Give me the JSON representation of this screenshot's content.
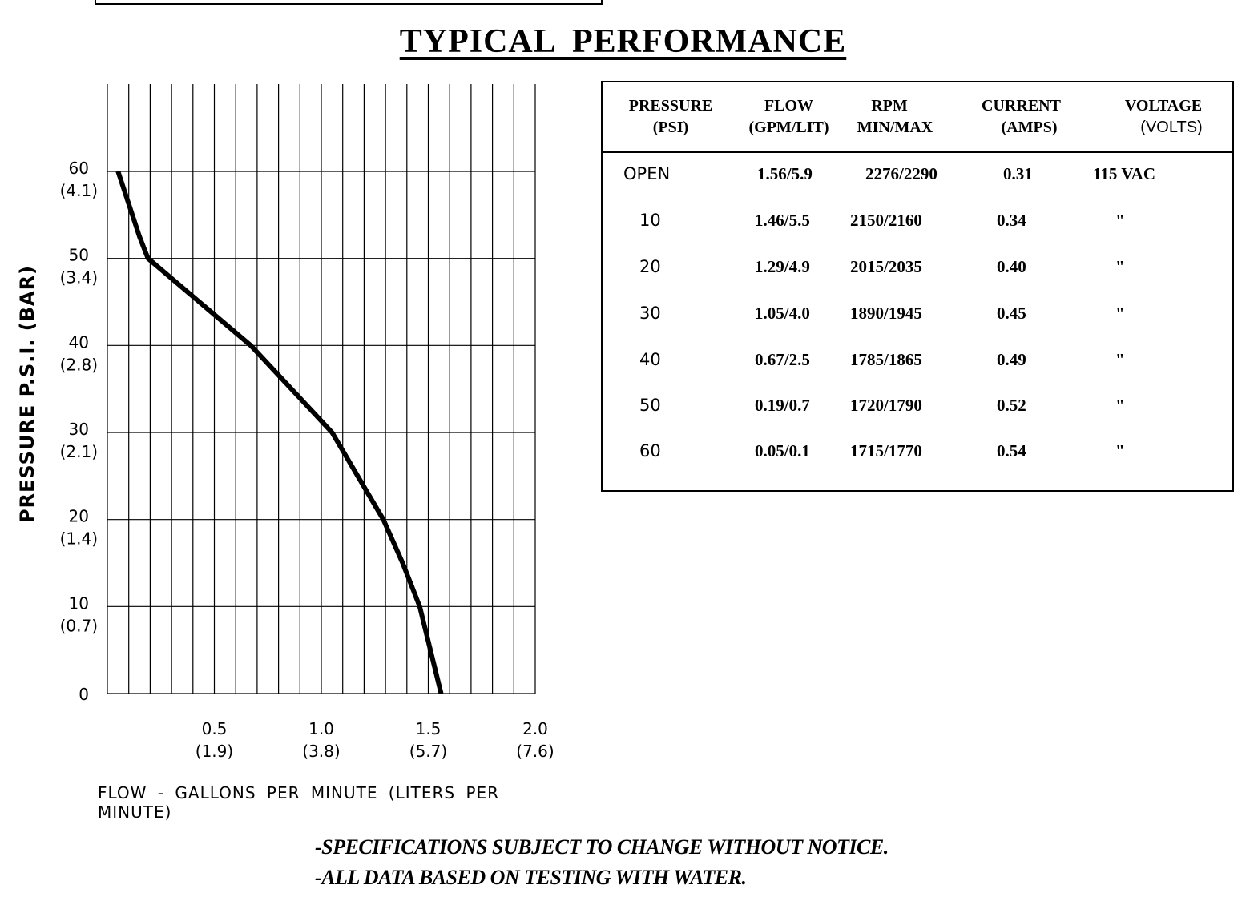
{
  "page_title": "TYPICAL PERFORMANCE",
  "chart_data": {
    "type": "line",
    "xlabel": "FLOW - GALLONS PER MINUTE (LITERS PER MINUTE)",
    "ylabel": "PRESSURE P.S.I. (BAR)",
    "xlim": [
      0,
      2.0
    ],
    "ylim": [
      0,
      60
    ],
    "x_ticks": [
      {
        "value": 0.5,
        "label": "0.5",
        "sub": "(1.9)"
      },
      {
        "value": 1.0,
        "label": "1.0",
        "sub": "(3.8)"
      },
      {
        "value": 1.5,
        "label": "1.5",
        "sub": "(5.7)"
      },
      {
        "value": 2.0,
        "label": "2.0",
        "sub": "(7.6)"
      }
    ],
    "y_ticks": [
      {
        "value": 0,
        "label": "0",
        "sub": ""
      },
      {
        "value": 10,
        "label": "10",
        "sub": "(0.7)"
      },
      {
        "value": 20,
        "label": "20",
        "sub": "(1.4)"
      },
      {
        "value": 30,
        "label": "30",
        "sub": "(2.1)"
      },
      {
        "value": 40,
        "label": "40",
        "sub": "(2.8)"
      },
      {
        "value": 50,
        "label": "50",
        "sub": "(3.4)"
      },
      {
        "value": 60,
        "label": "60",
        "sub": "(4.1)"
      }
    ],
    "grid": true,
    "series": [
      {
        "x": [
          1.56,
          1.46,
          1.38,
          1.29,
          1.05,
          0.67,
          0.19,
          0.15,
          0.05
        ],
        "y": [
          0,
          10,
          15,
          20,
          30,
          40,
          50,
          52.5,
          60
        ]
      }
    ]
  },
  "table": {
    "headers": [
      {
        "line1": "PRESSURE",
        "line2": "(PSI)"
      },
      {
        "line1": "FLOW",
        "line2": "(GPM/LIT)"
      },
      {
        "line1": "RPM",
        "line2": "MIN/MAX"
      },
      {
        "line1": "CURRENT",
        "line2": "(AMPS)"
      },
      {
        "line1": "VOLTAGE",
        "line2": "(VOLTS)"
      }
    ],
    "rows": [
      {
        "pressure": "OPEN",
        "flow": "1.56/5.9",
        "rpm": "2276/2290",
        "current": "0.31",
        "voltage": "115 VAC"
      },
      {
        "pressure": "10",
        "flow": "1.46/5.5",
        "rpm": "2150/2160",
        "current": "0.34",
        "voltage": "\""
      },
      {
        "pressure": "20",
        "flow": "1.29/4.9",
        "rpm": "2015/2035",
        "current": "0.40",
        "voltage": "\""
      },
      {
        "pressure": "30",
        "flow": "1.05/4.0",
        "rpm": "1890/1945",
        "current": "0.45",
        "voltage": "\""
      },
      {
        "pressure": "40",
        "flow": "0.67/2.5",
        "rpm": "1785/1865",
        "current": "0.49",
        "voltage": "\""
      },
      {
        "pressure": "50",
        "flow": "0.19/0.7",
        "rpm": "1720/1790",
        "current": "0.52",
        "voltage": "\""
      },
      {
        "pressure": "60",
        "flow": "0.05/0.1",
        "rpm": "1715/1770",
        "current": "0.54",
        "voltage": "\""
      }
    ]
  },
  "notes": [
    "-SPECIFICATIONS SUBJECT TO CHANGE WITHOUT NOTICE.",
    "-ALL DATA BASED ON TESTING WITH WATER."
  ]
}
